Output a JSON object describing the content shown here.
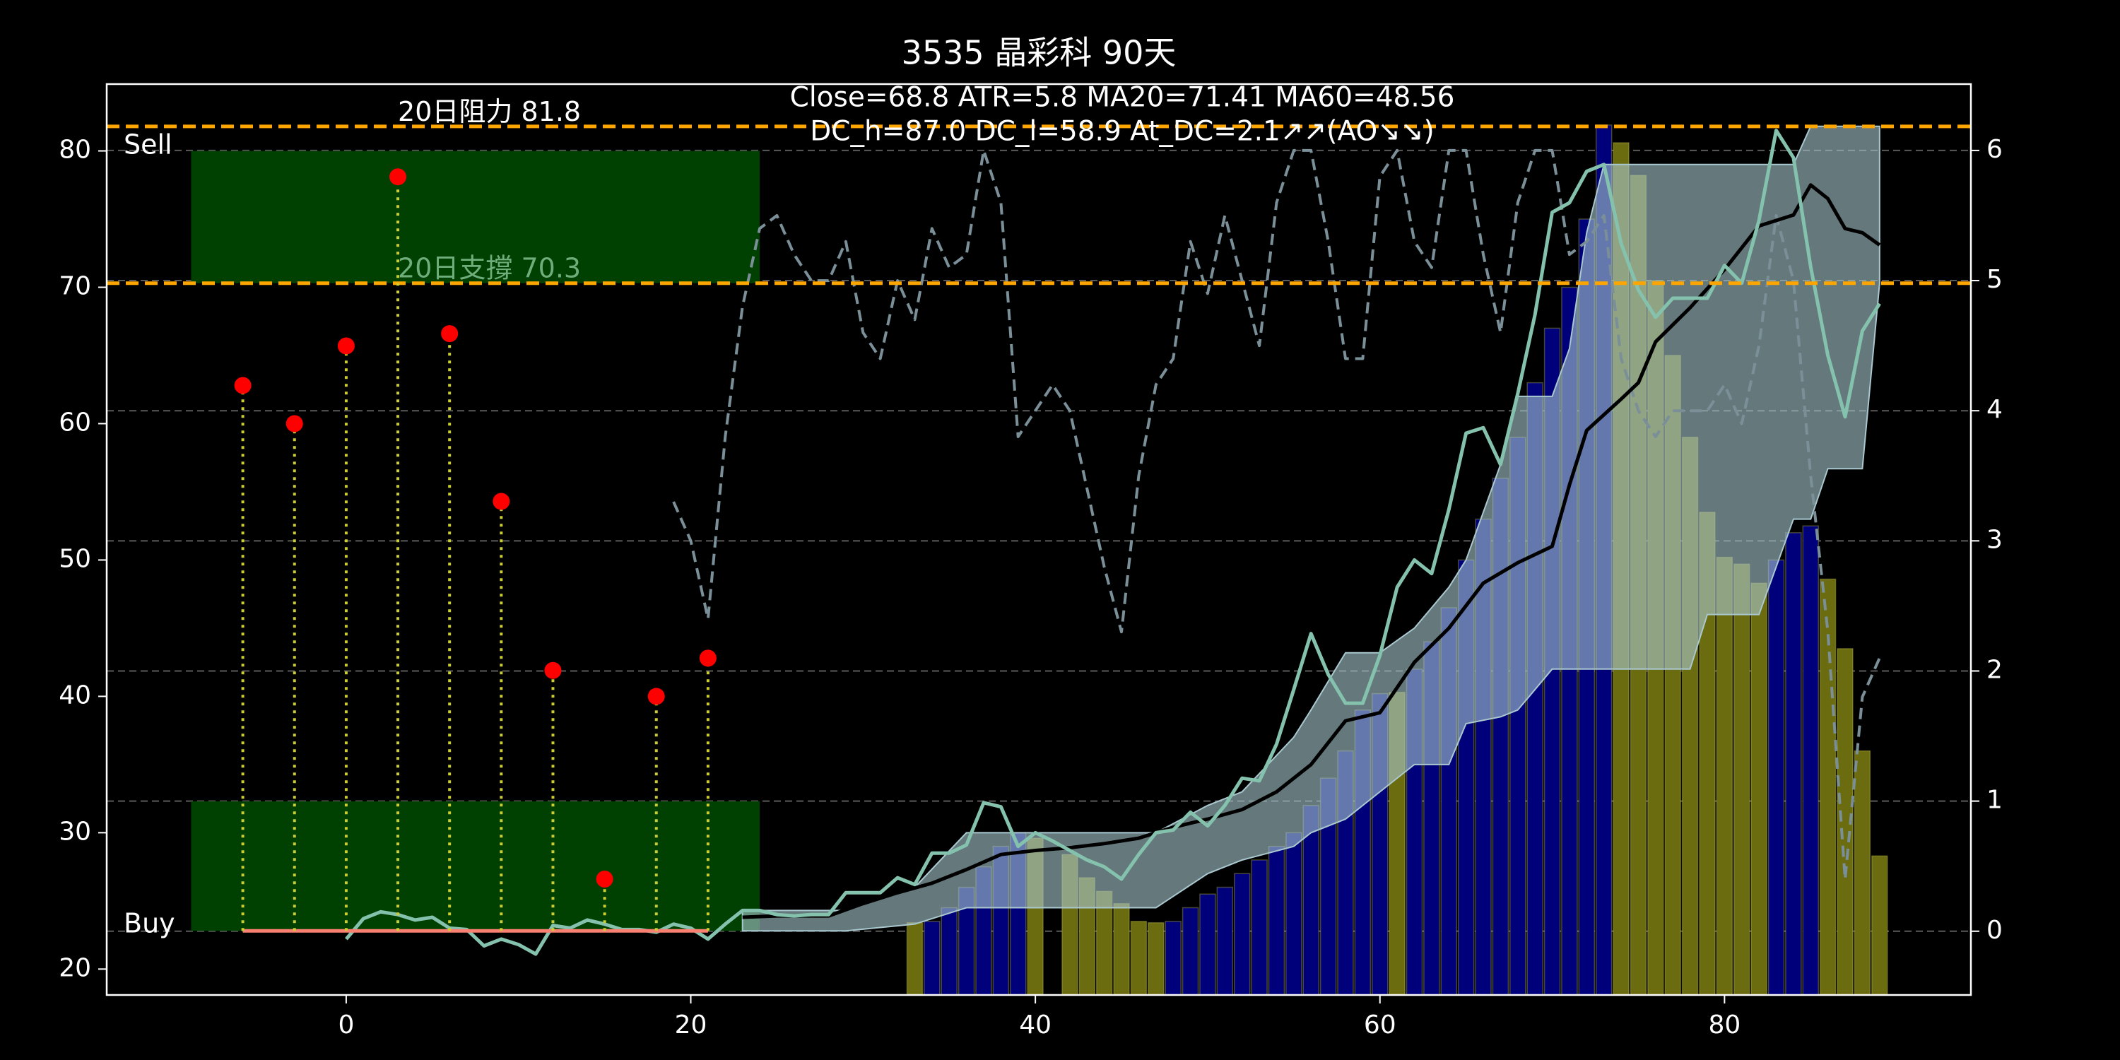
{
  "chart_data": {
    "type": "combo",
    "title": "3535 晶彩科 90天",
    "annotations": [
      "Close=68.8 ATR=5.8 MA20=71.41 MA60=48.56",
      "DC_h=87.0 DC_l=58.9 At_DC=2.1↗↗(AO↘↘)"
    ],
    "background": "#000000",
    "xlim": [
      -13.9,
      94.3
    ],
    "xticks": [
      0,
      20,
      40,
      60,
      80
    ],
    "ylim": [
      18.1,
      84.9
    ],
    "yticks": [
      20,
      30,
      40,
      50,
      60,
      70,
      80
    ],
    "y2lim": [
      -0.49,
      6.51
    ],
    "y2ticks": [
      0,
      1,
      2,
      3,
      4,
      5,
      6
    ],
    "y2grid": true,
    "zones": [
      {
        "label": "Sell",
        "color": "#004000",
        "x": [
          -9,
          24
        ],
        "y": [
          70.3,
          80
        ]
      },
      {
        "label": "Buy",
        "color": "#004000",
        "x": [
          -9,
          24
        ],
        "y": [
          22.8,
          32.3
        ]
      }
    ],
    "hlines": [
      {
        "label": "20日阻力 81.8",
        "value": 81.8,
        "color": "#ffa500",
        "label_color": "#ffffff"
      },
      {
        "label": "20日支撐 70.3",
        "value": 70.3,
        "color": "#ffa500",
        "label_color": "#6fae7a"
      }
    ],
    "series": [
      {
        "kind": "bar",
        "color": "#00007a",
        "x": [
          34,
          35,
          36,
          37,
          38,
          39,
          48,
          49,
          50,
          51,
          52,
          53,
          54,
          55,
          56,
          57,
          58,
          59,
          60,
          62,
          63,
          64,
          65,
          66,
          67,
          68,
          69,
          70,
          71,
          72,
          73,
          83,
          84,
          85
        ],
        "values": [
          23.5,
          24.5,
          26,
          27.5,
          29,
          30,
          23.5,
          24.5,
          25.5,
          26,
          27,
          28,
          29,
          30,
          32,
          34,
          36,
          39,
          40.2,
          42,
          44,
          46.5,
          50,
          53,
          56,
          59,
          63,
          67,
          70,
          75,
          81.9,
          50,
          52,
          52.5
        ]
      },
      {
        "kind": "bar",
        "color": "#6b6b10",
        "x": [
          33,
          40,
          42,
          43,
          44,
          45,
          46,
          47,
          61,
          74,
          75,
          76,
          77,
          78,
          79,
          80,
          81,
          82,
          86,
          87,
          88,
          89
        ],
        "values": [
          23.4,
          29.6,
          28.4,
          26.7,
          25.7,
          24.8,
          23.5,
          23.4,
          40.3,
          80.6,
          78.2,
          70.5,
          65,
          59,
          53.5,
          50.2,
          49.7,
          48.3,
          48.6,
          43.5,
          36,
          28.3
        ]
      },
      {
        "kind": "band",
        "color": "#a9c8cf",
        "x": [
          23,
          29,
          33,
          36,
          40,
          47,
          50,
          52,
          55,
          56,
          58,
          60,
          62,
          64,
          65,
          67,
          68,
          70,
          71,
          72,
          73,
          78,
          79,
          80,
          82,
          84,
          85,
          86,
          88,
          89
        ],
        "upper": [
          24.3,
          24.3,
          26,
          30,
          30,
          30,
          32,
          33,
          37,
          39,
          43.2,
          43.2,
          45,
          48,
          50,
          57,
          62,
          62,
          65.5,
          74,
          79,
          79,
          79,
          79,
          79,
          79,
          81.8,
          81.8,
          81.8,
          81.8
        ],
        "lower": [
          22.8,
          22.8,
          23.3,
          24.5,
          24.5,
          24.5,
          27,
          28,
          29,
          30,
          31,
          33,
          35,
          35,
          38,
          38.5,
          39,
          42,
          42,
          42,
          42,
          42,
          46,
          46,
          46,
          53,
          53,
          56.7,
          56.7,
          70.3
        ]
      },
      {
        "kind": "dashed",
        "axis": "y2",
        "color": "#7a8f97",
        "x": [
          19,
          20,
          21,
          22,
          23,
          24,
          25,
          26,
          27,
          28,
          29,
          30,
          31,
          32,
          33,
          34,
          35,
          36,
          37,
          38,
          39,
          40,
          41,
          42,
          43,
          44,
          45,
          46,
          47,
          48,
          49,
          50,
          51,
          52,
          53,
          54,
          55,
          56,
          57,
          58,
          59,
          60,
          61,
          62,
          63,
          64,
          65,
          66,
          67,
          68,
          69,
          70,
          71,
          72,
          73,
          74,
          75,
          76,
          77,
          78,
          79,
          80,
          81,
          82,
          83,
          84,
          85,
          86,
          87,
          88,
          89
        ],
        "values": [
          3.3,
          3,
          2.4,
          3.8,
          4.8,
          5.4,
          5.5,
          5.2,
          5,
          5,
          5.3,
          4.6,
          4.4,
          5,
          4.7,
          5.4,
          5.1,
          5.2,
          6,
          5.6,
          3.8,
          4,
          4.2,
          4,
          3.4,
          2.8,
          2.3,
          3.5,
          4.2,
          4.4,
          5.3,
          4.9,
          5.5,
          5,
          4.5,
          5.6,
          6,
          6,
          5.3,
          4.4,
          4.4,
          5.8,
          6,
          5.3,
          5.1,
          6,
          6,
          5.2,
          4.6,
          5.6,
          6,
          6,
          5.2,
          5.3,
          5.5,
          4.4,
          4,
          3.8,
          4,
          4,
          4,
          4.2,
          3.9,
          4.5,
          5.5,
          5,
          3.5,
          2.3,
          0.4,
          1.8,
          2.1
        ]
      },
      {
        "kind": "line",
        "color": "#000000",
        "x": [
          23,
          25,
          28,
          30,
          32,
          34,
          36,
          38,
          40,
          42,
          44,
          46,
          48,
          50,
          52,
          54,
          56,
          58,
          60,
          62,
          64,
          66,
          68,
          70,
          71,
          72,
          74,
          75,
          76,
          78,
          80,
          82,
          84,
          85,
          86,
          87,
          88,
          89
        ],
        "values": [
          23.8,
          23.9,
          23.9,
          24.8,
          25.6,
          26.3,
          27.3,
          28.4,
          28.7,
          28.9,
          29.2,
          29.6,
          30.4,
          31,
          31.7,
          33,
          35,
          38.2,
          38.8,
          42.5,
          45,
          48.3,
          49.8,
          51,
          55.5,
          59.5,
          61.8,
          63,
          66,
          68.5,
          71.3,
          74.5,
          75.3,
          77.5,
          76.5,
          74.3,
          74,
          73.1
        ]
      },
      {
        "kind": "line",
        "color": "#84c2ae",
        "x": [
          0,
          1,
          2,
          3,
          4,
          5,
          6,
          7,
          8,
          9,
          10,
          11,
          12,
          13,
          14,
          15,
          16,
          17,
          18,
          19,
          20,
          21,
          22,
          23,
          24,
          25,
          26,
          27,
          28,
          29,
          30,
          31,
          32,
          33,
          34,
          35,
          36,
          37,
          38,
          39,
          40,
          41,
          42,
          43,
          44,
          45,
          46,
          47,
          48,
          49,
          50,
          51,
          52,
          53,
          54,
          55,
          56,
          57,
          58,
          59,
          60,
          61,
          62,
          63,
          64,
          65,
          66,
          67,
          68,
          69,
          70,
          71,
          72,
          73,
          74,
          75,
          76,
          77,
          78,
          79,
          80,
          81,
          82,
          83,
          84,
          85,
          86,
          87,
          88,
          89
        ],
        "values": [
          22.2,
          23.7,
          24.2,
          24,
          23.6,
          23.8,
          23,
          22.9,
          21.7,
          22.2,
          21.8,
          21.1,
          23.2,
          23,
          23.6,
          23.3,
          22.9,
          22.9,
          22.7,
          23.3,
          23,
          22.2,
          23.3,
          24.3,
          24.3,
          24,
          23.9,
          24,
          24,
          25.6,
          25.6,
          25.6,
          26.7,
          26.2,
          28.5,
          28.5,
          29.1,
          32.2,
          31.9,
          29,
          30,
          29.4,
          28.7,
          28,
          27.5,
          26.6,
          28.4,
          30,
          30.2,
          31.5,
          30.5,
          32,
          34,
          33.8,
          36.5,
          40.5,
          44.6,
          41.6,
          39.5,
          39.5,
          43,
          48,
          50,
          49,
          53.7,
          59.3,
          59.7,
          57,
          62.2,
          68,
          75.5,
          76.2,
          78.5,
          79,
          73.2,
          69.8,
          67.8,
          69.2,
          69.2,
          69.2,
          71.6,
          70.3,
          74.9,
          81.5,
          79.5,
          71.5,
          65,
          60.5,
          66.8,
          68.8
        ]
      },
      {
        "kind": "line",
        "color": "#fa8072",
        "x": [
          -6,
          21
        ],
        "values": [
          22.8,
          22.8
        ]
      },
      {
        "kind": "stem",
        "color": "#ff0000",
        "stem_color": "#cccc33",
        "baseline": 22.8,
        "x": [
          -6,
          -3,
          0,
          3,
          6,
          9,
          12,
          15,
          18,
          21
        ],
        "values": [
          62.8,
          60,
          65.7,
          78.1,
          66.6,
          54.3,
          41.9,
          26.6,
          40,
          42.8
        ]
      }
    ]
  }
}
